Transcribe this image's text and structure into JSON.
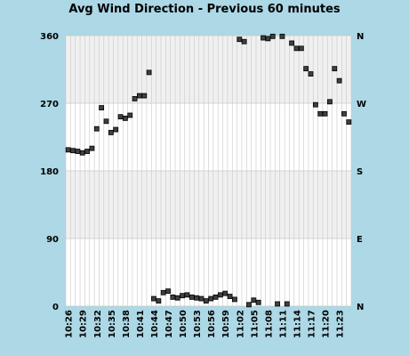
{
  "chart_data": {
    "type": "scatter",
    "title": "Avg Wind Direction - Previous 60 minutes",
    "xlabel": "",
    "ylabel": "",
    "ylim": [
      0,
      360
    ],
    "yticks": [
      0,
      90,
      180,
      270,
      360
    ],
    "right_labels": [
      {
        "value": 360,
        "label": "N"
      },
      {
        "value": 270,
        "label": "W"
      },
      {
        "value": 180,
        "label": "S"
      },
      {
        "value": 90,
        "label": "E"
      },
      {
        "value": 0,
        "label": "N"
      }
    ],
    "x_tick_labels": [
      "10:26",
      "10:29",
      "10:32",
      "10:35",
      "10:38",
      "10:41",
      "10:44",
      "10:47",
      "10:50",
      "10:53",
      "10:56",
      "10:59",
      "11:02",
      "11:05",
      "11:08",
      "11:11",
      "11:14",
      "11:17",
      "11:20",
      "11:23"
    ],
    "x": [
      "10:26",
      "10:27",
      "10:28",
      "10:29",
      "10:30",
      "10:31",
      "10:32",
      "10:33",
      "10:34",
      "10:35",
      "10:36",
      "10:37",
      "10:38",
      "10:39",
      "10:40",
      "10:41",
      "10:42",
      "10:43",
      "10:44",
      "10:45",
      "10:46",
      "10:47",
      "10:48",
      "10:49",
      "10:50",
      "10:51",
      "10:52",
      "10:53",
      "10:54",
      "10:55",
      "10:56",
      "10:57",
      "10:58",
      "10:59",
      "11:00",
      "11:01",
      "11:02",
      "11:03",
      "11:04",
      "11:05",
      "11:06",
      "11:07",
      "11:08",
      "11:09",
      "11:10",
      "11:11",
      "11:12",
      "11:13",
      "11:14",
      "11:15",
      "11:16",
      "11:17",
      "11:18",
      "11:19",
      "11:20",
      "11:21",
      "11:22",
      "11:23",
      "11:24",
      "11:25"
    ],
    "values": [
      208,
      207,
      206,
      204,
      206,
      210,
      236,
      264,
      246,
      231,
      235,
      252,
      250,
      254,
      276,
      280,
      280,
      311,
      10,
      7,
      18,
      20,
      12,
      11,
      14,
      15,
      12,
      11,
      10,
      7,
      10,
      12,
      15,
      17,
      13,
      9,
      355,
      352,
      2,
      8,
      5,
      357,
      356,
      359,
      3,
      359,
      3,
      350,
      343,
      343,
      316,
      309,
      268,
      256,
      256,
      272,
      316,
      300,
      256,
      245
    ],
    "grid": true,
    "marker": "square",
    "colors": {
      "background": "#add8e6",
      "plot": "#ffffff",
      "band": "#f0f0f0",
      "grid": "#c8c8c8",
      "marker": "#404040"
    }
  }
}
